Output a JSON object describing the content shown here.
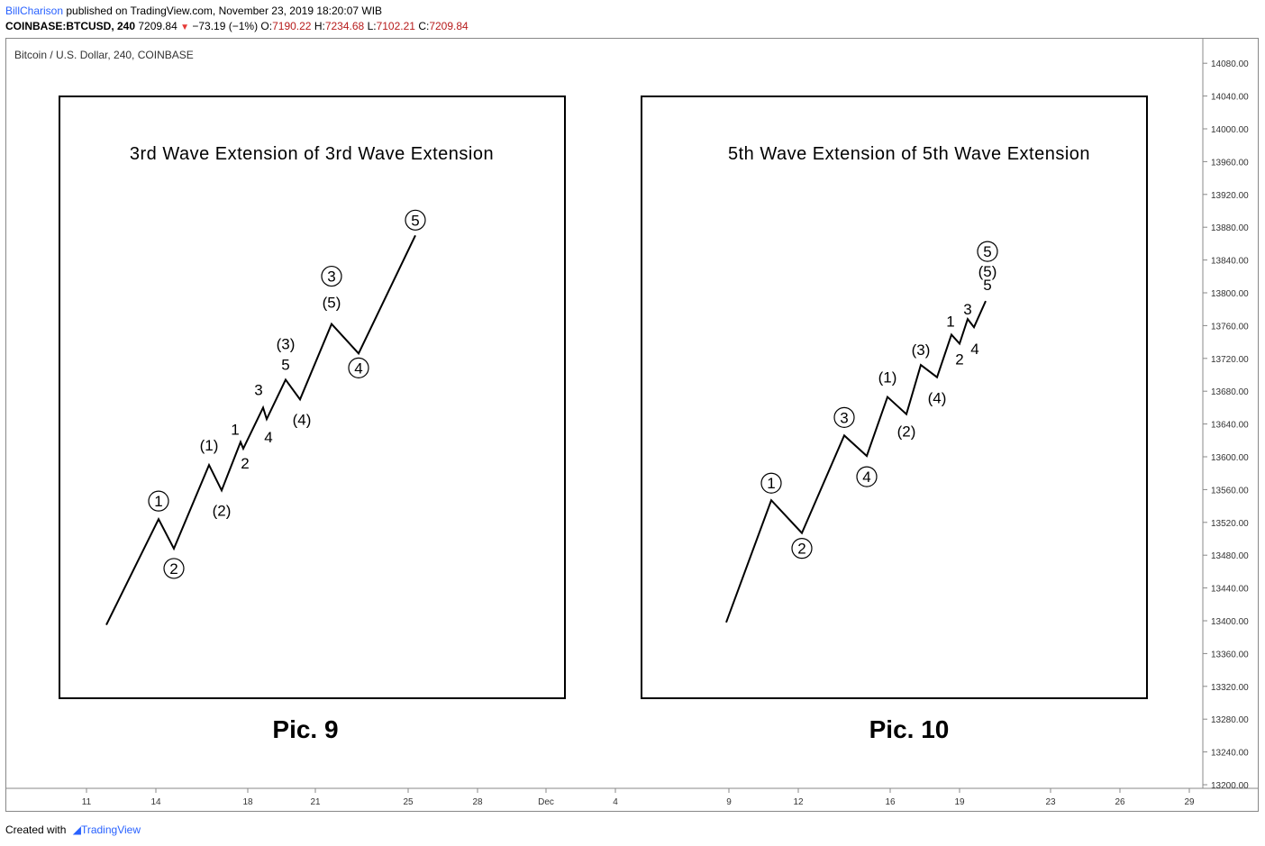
{
  "header": {
    "author": "BillCharison",
    "published": "published on TradingView.com, November 23, 2019 18:20:07 WIB",
    "symbol": "COINBASE:BTCUSD, 240",
    "last": "7209.84",
    "change": "−73.19 (−1%)",
    "o_label": "O:",
    "o_value": "7190.22",
    "h_label": "H:",
    "h_value": "7234.68",
    "l_label": "L:",
    "l_value": "7102.21",
    "c_label": "C:",
    "c_value": "7209.84"
  },
  "pane_title": "Bitcoin / U.S. Dollar, 240, COINBASE",
  "footer": {
    "created_with": "Created with",
    "brand": "TradingView"
  },
  "colors": {
    "author": "#2962ff",
    "down": "#e53935",
    "ohlc": "#b71c1c",
    "line": "#000000"
  },
  "chart_data": [
    {
      "type": "line",
      "title": "3rd Wave Extension of 3rd Wave Extension",
      "caption": "Pic. 9",
      "points": [
        {
          "x": "12 Nov",
          "y": 13395
        },
        {
          "x": "14 Nov",
          "y": 13524,
          "labels": [
            "①"
          ]
        },
        {
          "x": "15 Nov",
          "y": 13488,
          "labels": [
            "②"
          ]
        },
        {
          "x": "16 Nov",
          "y": 13590,
          "labels": [
            "(1)"
          ]
        },
        {
          "x": "17 Nov",
          "y": 13559,
          "labels": [
            "(2)"
          ]
        },
        {
          "x": "18 Nov",
          "y": 13618,
          "labels": [
            "1"
          ]
        },
        {
          "x": "18 Nov",
          "y": 13610,
          "labels": [
            "2"
          ]
        },
        {
          "x": "19 Nov",
          "y": 13660,
          "labels": [
            "3"
          ]
        },
        {
          "x": "19 Nov",
          "y": 13646,
          "labels": [
            "4"
          ]
        },
        {
          "x": "20 Nov",
          "y": 13694,
          "labels": [
            "5",
            "(3)"
          ]
        },
        {
          "x": "21 Nov",
          "y": 13670,
          "labels": [
            "(4)"
          ]
        },
        {
          "x": "22 Nov",
          "y": 13762,
          "labels": [
            "(5)",
            "③"
          ]
        },
        {
          "x": "23 Nov",
          "y": 13726,
          "labels": [
            "④"
          ]
        },
        {
          "x": "25 Nov",
          "y": 13870,
          "labels": [
            "⑤"
          ]
        }
      ]
    },
    {
      "type": "line",
      "title": "5th Wave Extension of 5th Wave Extension",
      "caption": "Pic. 10",
      "points": [
        {
          "x": "9 Dec",
          "y": 13398
        },
        {
          "x": "10 Dec",
          "y": 13547,
          "labels": [
            "①"
          ]
        },
        {
          "x": "12 Dec",
          "y": 13507,
          "labels": [
            "②"
          ]
        },
        {
          "x": "14 Dec",
          "y": 13626,
          "labels": [
            "③"
          ]
        },
        {
          "x": "15 Dec",
          "y": 13601,
          "labels": [
            "④"
          ]
        },
        {
          "x": "16 Dec",
          "y": 13673,
          "labels": [
            "(1)"
          ]
        },
        {
          "x": "17 Dec",
          "y": 13652,
          "labels": [
            "(2)"
          ]
        },
        {
          "x": "18 Dec",
          "y": 13712,
          "labels": [
            "(3)"
          ]
        },
        {
          "x": "18 Dec",
          "y": 13697,
          "labels": [
            "(4)"
          ]
        },
        {
          "x": "19 Dec",
          "y": 13749,
          "labels": [
            "1"
          ]
        },
        {
          "x": "19 Dec",
          "y": 13738,
          "labels": [
            "2"
          ]
        },
        {
          "x": "20 Dec",
          "y": 13768,
          "labels": [
            "3"
          ]
        },
        {
          "x": "20 Dec",
          "y": 13758,
          "labels": [
            "4"
          ]
        },
        {
          "x": "21 Dec",
          "y": 13790,
          "labels": [
            "5",
            "(5)",
            "⑤"
          ]
        }
      ]
    }
  ],
  "axes": {
    "y_ticks": [
      "14080.00",
      "14040.00",
      "14000.00",
      "13960.00",
      "13920.00",
      "13880.00",
      "13840.00",
      "13800.00",
      "13760.00",
      "13720.00",
      "13680.00",
      "13640.00",
      "13600.00",
      "13560.00",
      "13520.00",
      "13480.00",
      "13440.00",
      "13400.00",
      "13360.00",
      "13320.00",
      "13280.00",
      "13240.00",
      "13200.00"
    ],
    "ylim": [
      13200,
      14080
    ],
    "x_ticks": [
      "11",
      "14",
      "18",
      "21",
      "25",
      "28",
      "Dec",
      "4",
      "9",
      "12",
      "16",
      "19",
      "23",
      "26",
      "29"
    ]
  }
}
